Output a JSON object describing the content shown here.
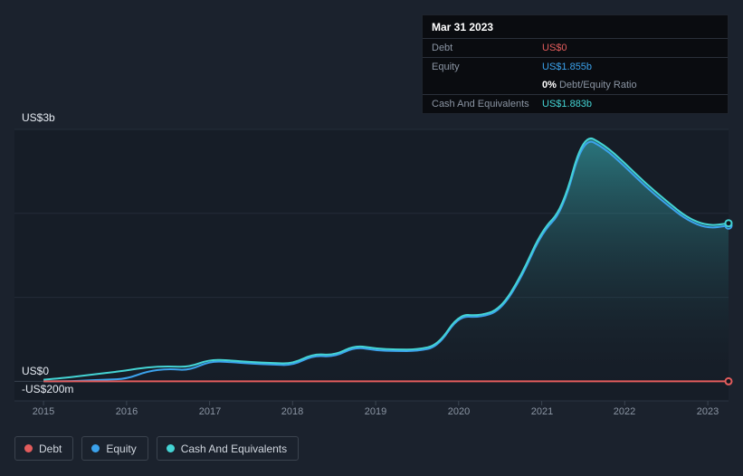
{
  "colors": {
    "background": "#1b222d",
    "plot_background": "#161d27",
    "debt": "#e25c5c",
    "equity": "#3ba2ec",
    "cash": "#44d4d4"
  },
  "tooltip": {
    "date": "Mar 31 2023",
    "debt_label": "Debt",
    "debt_value": "US$0",
    "equity_label": "Equity",
    "equity_value": "US$1.855b",
    "ratio_value": "0%",
    "ratio_label": " Debt/Equity Ratio",
    "cash_label": "Cash And Equivalents",
    "cash_value": "US$1.883b"
  },
  "legend": {
    "items": [
      {
        "label": "Debt",
        "color": "#e25c5c"
      },
      {
        "label": "Equity",
        "color": "#3ba2ec"
      },
      {
        "label": "Cash And Equivalents",
        "color": "#44d4d4"
      }
    ]
  },
  "chart_data": {
    "type": "area",
    "title": "",
    "xlabel": "",
    "ylabel": "",
    "xlim": [
      2014.65,
      2023.25
    ],
    "ylim": [
      -0.2,
      3.0
    ],
    "grid": true,
    "legend_position": "bottom-left",
    "y_gridlines": [
      0,
      1,
      2,
      3
    ],
    "y_labels": [
      {
        "text": "US$3b",
        "value": 3
      },
      {
        "text": "US$0",
        "value": 0
      },
      {
        "text": "-US$200m",
        "value": -0.2
      }
    ],
    "x_tick_years": [
      2015,
      2016,
      2017,
      2018,
      2019,
      2020,
      2021,
      2022,
      2023
    ],
    "x_tick_labels": [
      "2015",
      "2016",
      "2017",
      "2018",
      "2019",
      "2020",
      "2021",
      "2022",
      "2023"
    ],
    "x": [
      2015.0,
      2015.25,
      2015.5,
      2015.75,
      2016.0,
      2016.25,
      2016.5,
      2016.75,
      2017.0,
      2017.25,
      2017.5,
      2017.75,
      2018.0,
      2018.25,
      2018.5,
      2018.75,
      2019.0,
      2019.25,
      2019.5,
      2019.75,
      2020.0,
      2020.25,
      2020.5,
      2020.75,
      2021.0,
      2021.25,
      2021.5,
      2021.75,
      2022.0,
      2022.25,
      2022.5,
      2022.75,
      2023.0,
      2023.25
    ],
    "series": [
      {
        "name": "Debt",
        "color": "#e25c5c",
        "unit": "US$b",
        "values": [
          0,
          0,
          0,
          0,
          0,
          0,
          0,
          0,
          0,
          0,
          0,
          0,
          0,
          0,
          0,
          0,
          0,
          0,
          0,
          0,
          0,
          0,
          0,
          0,
          0,
          0,
          0,
          0,
          0,
          0,
          0,
          0,
          0,
          0
        ]
      },
      {
        "name": "Equity",
        "color": "#3ba2ec",
        "unit": "US$b",
        "values": [
          0.0,
          0.0,
          0.01,
          0.02,
          0.03,
          0.12,
          0.15,
          0.13,
          0.24,
          0.23,
          0.21,
          0.2,
          0.19,
          0.31,
          0.29,
          0.41,
          0.37,
          0.36,
          0.36,
          0.41,
          0.78,
          0.76,
          0.84,
          1.22,
          1.77,
          2.02,
          2.91,
          2.78,
          2.56,
          2.32,
          2.11,
          1.92,
          1.82,
          1.855
        ]
      },
      {
        "name": "Cash And Equivalents",
        "color": "#44d4d4",
        "unit": "US$b",
        "values": [
          0.02,
          0.04,
          0.07,
          0.1,
          0.13,
          0.17,
          0.18,
          0.17,
          0.26,
          0.25,
          0.23,
          0.22,
          0.21,
          0.33,
          0.31,
          0.43,
          0.39,
          0.38,
          0.38,
          0.43,
          0.8,
          0.78,
          0.86,
          1.25,
          1.8,
          2.05,
          2.95,
          2.82,
          2.6,
          2.36,
          2.15,
          1.95,
          1.85,
          1.883
        ]
      }
    ]
  }
}
